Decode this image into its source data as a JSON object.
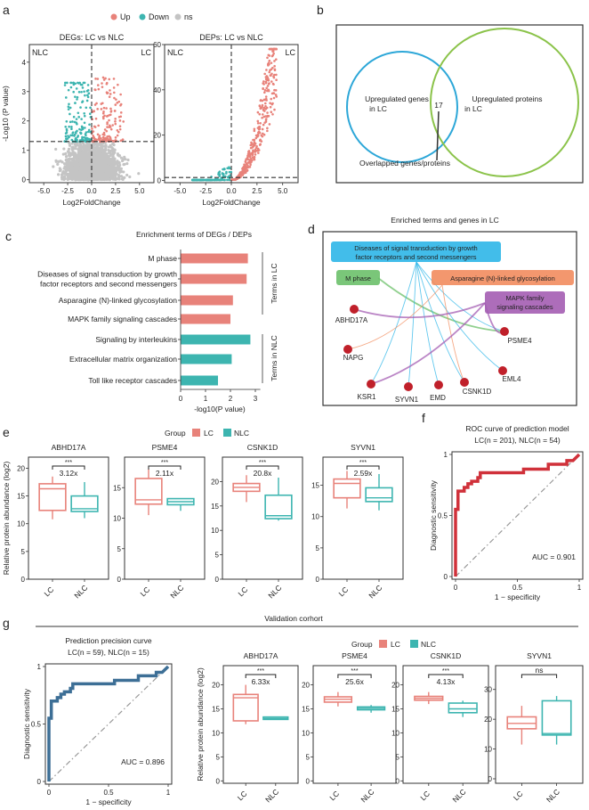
{
  "panel_labels": [
    "a",
    "b",
    "c",
    "d",
    "e",
    "f",
    "g"
  ],
  "colors": {
    "up": "#e8827a",
    "down": "#3db5b0",
    "ns": "#c4c4c4",
    "lc": "#e8827a",
    "nlc": "#3db5b0",
    "roc_f": "#d0313a",
    "roc_g": "#3d6f96",
    "mapk_red": "#d9534f"
  },
  "chart_data": [
    {
      "id": "a1",
      "type": "scatter",
      "title": "DEGs: LC vs NLC",
      "xlabel": "Log2FoldChange",
      "ylabel": "-Log10 (P value)",
      "xlim": [
        -6.5,
        6.5
      ],
      "ylim": [
        -0.1,
        4.6
      ],
      "xticks": [
        "-5.0",
        "-2.5",
        "0.0",
        "2.5",
        "5.0"
      ],
      "yticks": [
        "0",
        "1",
        "2",
        "3",
        "4"
      ],
      "threshold_y": 1.3,
      "threshold_x": 0,
      "corner_left": "NLC",
      "corner_right": "LC",
      "legend": [
        {
          "name": "Up",
          "color": "#e8827a"
        },
        {
          "name": "Down",
          "color": "#3db5b0"
        },
        {
          "name": "ns",
          "color": "#c4c4c4"
        }
      ]
    },
    {
      "id": "a2",
      "type": "scatter",
      "title": "DEPs: LC vs NLC",
      "xlabel": "Log2FoldChange",
      "ylim": [
        -1,
        60
      ],
      "xlim": [
        -6.5,
        6.5
      ],
      "xticks": [
        "-5.0",
        "-2.5",
        "0.0",
        "2.5",
        "5.0"
      ],
      "yticks": [
        "0",
        "20",
        "40",
        "60"
      ],
      "threshold_y": 1.3,
      "threshold_x": 0,
      "corner_left": "NLC",
      "corner_right": "LC"
    },
    {
      "id": "b",
      "type": "venn",
      "sets": [
        "Upregulated genes in LC",
        "Upregulated proteins in LC"
      ],
      "set_lines": [
        [
          "Upregulated genes",
          "in LC"
        ],
        [
          "Upregulated proteins",
          "in LC"
        ]
      ],
      "overlap": "17",
      "overlap_label": "Overlapped genes/proteins"
    },
    {
      "id": "c",
      "type": "bar",
      "title": "Enrichment terms of DEGs / DEPs",
      "xlabel": "-log10(P value)",
      "xlim": [
        0,
        3.3
      ],
      "xticks": [
        "0",
        "1",
        "2",
        "3"
      ],
      "categories": [
        [
          "M phase"
        ],
        [
          "Diseases of signal transduction by growth",
          "factor receptors and second messengers"
        ],
        [
          "Asparagine (N)-linked glycosylation"
        ],
        [
          "MAPK family signaling cascades"
        ],
        [
          "Signaling by interleukins"
        ],
        [
          "Extracellular matrix organization"
        ],
        [
          "Toll like receptor cascades"
        ]
      ],
      "values": [
        2.7,
        2.65,
        2.1,
        2.0,
        2.8,
        2.05,
        1.5
      ],
      "groups": [
        "LC",
        "LC",
        "LC",
        "LC",
        "NLC",
        "NLC",
        "NLC"
      ],
      "highlight_index": 3,
      "group_labels": {
        "LC": "Terms in LC",
        "NLC": "Terms in NLC"
      }
    },
    {
      "id": "d",
      "type": "network",
      "title": "Enriched terms and genes in LC",
      "terms": [
        {
          "key": "dis",
          "lines": [
            "Diseases of signal transduction by growth",
            "factor receptors and second messengers"
          ],
          "color": "#2db6e8"
        },
        {
          "key": "mph",
          "lines": [
            "M phase"
          ],
          "color": "#6cc06a"
        },
        {
          "key": "asn",
          "lines": [
            "Asparagine (N)-linked glycosylation"
          ],
          "color": "#f28c5e"
        },
        {
          "key": "mapk",
          "lines": [
            "MAPK family",
            "signaling cascades"
          ],
          "color": "#a45db3"
        }
      ],
      "genes": [
        "ABHD17A",
        "NAPG",
        "KSR1",
        "SYVN1",
        "EMD",
        "CSNK1D",
        "EML4",
        "PSME4"
      ],
      "edges": [
        [
          "mph",
          "PSME4"
        ],
        [
          "dis",
          "KSR1"
        ],
        [
          "dis",
          "PSME4"
        ],
        [
          "dis",
          "EML4"
        ],
        [
          "dis",
          "CSNK1D"
        ],
        [
          "dis",
          "EMD"
        ],
        [
          "dis",
          "SYVN1"
        ],
        [
          "asn",
          "NAPG"
        ],
        [
          "asn",
          "CSNK1D"
        ],
        [
          "mapk",
          "KSR1"
        ],
        [
          "mapk",
          "PSME4"
        ],
        [
          "mapk",
          "ABHD17A"
        ]
      ]
    },
    {
      "id": "e",
      "type": "boxplot",
      "ylabel": "Relative protein abundance (log2)",
      "legend_title": "Group",
      "groups": [
        "LC",
        "NLC"
      ],
      "panels": [
        {
          "title": "ABHD17A",
          "ylim": [
            0,
            22
          ],
          "yticks": [
            0,
            5,
            10,
            15,
            20
          ],
          "sig": "***",
          "fold": "3.12x",
          "LC": {
            "min": 10.8,
            "q1": 12.4,
            "median": 16.3,
            "q3": 17.2,
            "max": 18.5
          },
          "NLC": {
            "min": 11,
            "q1": 12.2,
            "median": 12.7,
            "q3": 15,
            "max": 17.5
          }
        },
        {
          "title": "PSME4",
          "ylim": [
            0,
            20
          ],
          "yticks": [
            0,
            5,
            10,
            15
          ],
          "sig": "***",
          "fold": "2.11x",
          "LC": {
            "min": 10.5,
            "q1": 12.3,
            "median": 13,
            "q3": 16.5,
            "max": 18
          },
          "NLC": {
            "min": 11.2,
            "q1": 12.2,
            "median": 12.7,
            "q3": 13.2,
            "max": 13.2
          }
        },
        {
          "title": "CSNK1D",
          "ylim": [
            0,
            25
          ],
          "yticks": [
            0,
            5,
            10,
            15,
            20
          ],
          "sig": "***",
          "fold": "20.8x",
          "LC": {
            "min": 15.8,
            "q1": 18,
            "median": 18.8,
            "q3": 19.6,
            "max": 21.3
          },
          "NLC": {
            "min": 12,
            "q1": 12.4,
            "median": 13,
            "q3": 17.2,
            "max": 20.8
          }
        },
        {
          "title": "SYVN1",
          "ylim": [
            0,
            19.5
          ],
          "yticks": [
            0,
            5,
            10,
            15
          ],
          "sig": "***",
          "fold": "2.59x",
          "LC": {
            "min": 11.3,
            "q1": 13,
            "median": 15.3,
            "q3": 16,
            "max": 17.3
          },
          "NLC": {
            "min": 11,
            "q1": 12.4,
            "median": 13,
            "q3": 14.6,
            "max": 16.8
          }
        }
      ]
    },
    {
      "id": "f",
      "type": "line",
      "title_lines": [
        "ROC curve of prediction model",
        "LC(n = 201),  NLC(n = 54)"
      ],
      "xlabel": "1 − specificity",
      "ylabel": "Diagnostic sensitivity",
      "xlim": [
        0,
        1
      ],
      "ylim": [
        0,
        1
      ],
      "xticks": [
        "0",
        "0.5",
        "1"
      ],
      "yticks": [
        "0",
        "0.5",
        "1"
      ],
      "auc": "AUC = 0.901",
      "points": [
        [
          0,
          0
        ],
        [
          0,
          0.55
        ],
        [
          0.02,
          0.55
        ],
        [
          0.02,
          0.7
        ],
        [
          0.07,
          0.7
        ],
        [
          0.07,
          0.73
        ],
        [
          0.1,
          0.73
        ],
        [
          0.1,
          0.76
        ],
        [
          0.13,
          0.76
        ],
        [
          0.13,
          0.78
        ],
        [
          0.18,
          0.78
        ],
        [
          0.18,
          0.81
        ],
        [
          0.2,
          0.81
        ],
        [
          0.2,
          0.85
        ],
        [
          0.55,
          0.85
        ],
        [
          0.55,
          0.88
        ],
        [
          0.75,
          0.88
        ],
        [
          0.75,
          0.92
        ],
        [
          0.9,
          0.92
        ],
        [
          0.9,
          0.95
        ],
        [
          0.95,
          0.95
        ],
        [
          1,
          1
        ]
      ]
    },
    {
      "id": "g_roc",
      "type": "line",
      "section_title": "Validation corhort",
      "title_lines": [
        "Prediction precision curve",
        "LC(n = 59), NLC(n = 15)"
      ],
      "xlabel": "1 − specificity",
      "ylabel": "Diagnostic sensitivity",
      "xlim": [
        0,
        1
      ],
      "ylim": [
        0,
        1
      ],
      "xticks": [
        "0",
        "0.5",
        "1"
      ],
      "yticks": [
        "0",
        "0.5",
        "1"
      ],
      "auc": "AUC = 0.896",
      "points": [
        [
          0,
          0
        ],
        [
          0,
          0.55
        ],
        [
          0.02,
          0.55
        ],
        [
          0.02,
          0.7
        ],
        [
          0.07,
          0.7
        ],
        [
          0.07,
          0.73
        ],
        [
          0.1,
          0.73
        ],
        [
          0.1,
          0.76
        ],
        [
          0.13,
          0.76
        ],
        [
          0.13,
          0.78
        ],
        [
          0.18,
          0.78
        ],
        [
          0.18,
          0.81
        ],
        [
          0.2,
          0.81
        ],
        [
          0.2,
          0.85
        ],
        [
          0.55,
          0.85
        ],
        [
          0.55,
          0.88
        ],
        [
          0.75,
          0.88
        ],
        [
          0.75,
          0.92
        ],
        [
          0.9,
          0.92
        ],
        [
          0.9,
          0.95
        ],
        [
          0.95,
          0.95
        ],
        [
          1,
          1
        ]
      ]
    },
    {
      "id": "g_box",
      "type": "boxplot",
      "ylabel": "Relative protein abundance (log2)",
      "legend_title": "Group",
      "groups": [
        "LC",
        "NLC"
      ],
      "panels": [
        {
          "title": "ABHD17A",
          "ylim": [
            -0.5,
            24
          ],
          "yticks": [
            0,
            5,
            10,
            15,
            20
          ],
          "sig": "***",
          "fold": "6.33x",
          "LC": {
            "min": 11.8,
            "q1": 12.5,
            "median": 17.3,
            "q3": 18,
            "max": 20
          },
          "NLC": {
            "min": 12.8,
            "q1": 12.8,
            "median": 13,
            "q3": 13.3,
            "max": 13.3
          }
        },
        {
          "title": "PSME4",
          "ylim": [
            -0.5,
            24
          ],
          "yticks": [
            0,
            5,
            10,
            15,
            20
          ],
          "sig": "***",
          "fold": "25.6x",
          "LC": {
            "min": 15.5,
            "q1": 16.4,
            "median": 17,
            "q3": 17.5,
            "max": 18.5
          },
          "NLC": {
            "min": 14.2,
            "q1": 14.8,
            "median": 15.1,
            "q3": 15.4,
            "max": 15.8
          }
        },
        {
          "title": "CSNK1D",
          "ylim": [
            -0.5,
            24
          ],
          "yticks": [
            0,
            5,
            10,
            15,
            20
          ],
          "sig": "***",
          "fold": "4.13x",
          "LC": {
            "min": 16,
            "q1": 16.8,
            "median": 17.2,
            "q3": 17.6,
            "max": 18.5
          },
          "NLC": {
            "min": 13.3,
            "q1": 14.2,
            "median": 15,
            "q3": 16.2,
            "max": 16.7
          }
        },
        {
          "title": "SYVN1",
          "ylim": [
            -1.5,
            38
          ],
          "yticks": [
            0,
            10,
            20,
            30
          ],
          "sig": "ns",
          "fold": "",
          "LC": {
            "min": 11.5,
            "q1": 16.8,
            "median": 18.6,
            "q3": 20.8,
            "max": 24.5
          },
          "NLC": {
            "min": 11.5,
            "q1": 14.7,
            "median": 15.2,
            "q3": 26.2,
            "max": 27.8
          }
        }
      ]
    }
  ]
}
